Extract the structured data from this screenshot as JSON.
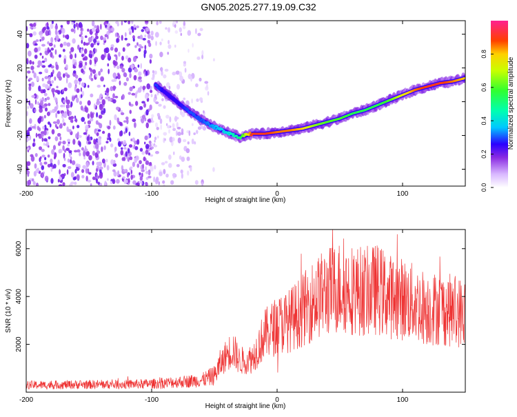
{
  "title": "GN05.2025.277.19.09.C32",
  "chart_data": [
    {
      "type": "heatmap",
      "title": "GN05.2025.277.19.09.C32",
      "xlabel": "Height of straight line (km)",
      "ylabel": "Frequency (Hz)",
      "xlim": [
        -200,
        150
      ],
      "ylim": [
        -50,
        48
      ],
      "x_ticks": [
        -200,
        -100,
        0,
        100
      ],
      "y_ticks": [
        -40,
        -20,
        0,
        20,
        40
      ],
      "colorbar": {
        "label": "Normalized spectral amplitude",
        "range": [
          0,
          1
        ],
        "ticks": [
          0.0,
          0.2,
          0.4,
          0.6,
          0.8
        ],
        "tick_labels": [
          "0.0",
          "0.2",
          "0.4",
          "0.6",
          "0.8"
        ]
      },
      "ridge": {
        "x": [
          -97,
          -90,
          -80,
          -70,
          -60,
          -50,
          -40,
          -30,
          -20,
          -10,
          0,
          10,
          20,
          30,
          40,
          50,
          60,
          70,
          80,
          90,
          100,
          110,
          120,
          130,
          140,
          150
        ],
        "freq": [
          10,
          6,
          0,
          -6,
          -11,
          -15,
          -18,
          -21,
          -19,
          -19,
          -18,
          -17,
          -16,
          -14,
          -12,
          -10,
          -7,
          -5,
          -2,
          1,
          4,
          7,
          9,
          11,
          12,
          14
        ],
        "amplitude": [
          0.3,
          0.25,
          0.25,
          0.3,
          0.3,
          0.35,
          0.4,
          0.5,
          0.9,
          0.9,
          0.85,
          0.85,
          0.8,
          0.65,
          0.6,
          0.6,
          0.55,
          0.55,
          0.55,
          0.6,
          0.75,
          0.85,
          0.9,
          0.9,
          0.85,
          0.8
        ]
      },
      "noise_region_x": [
        -200,
        -55
      ]
    },
    {
      "type": "line",
      "xlabel": "Height of straight line (km)",
      "ylabel": "SNR (10 * v/v)",
      "xlim": [
        -200,
        150
      ],
      "ylim": [
        0,
        6800
      ],
      "x_ticks": [
        -200,
        -100,
        0,
        100
      ],
      "y_ticks": [
        2000,
        4000,
        6000
      ],
      "series": [
        {
          "name": "SNR",
          "color": "#ee3333",
          "x": [
            -200,
            -180,
            -160,
            -140,
            -120,
            -100,
            -80,
            -60,
            -50,
            -40,
            -35,
            -30,
            -20,
            -10,
            0,
            10,
            20,
            30,
            40,
            50,
            60,
            70,
            80,
            90,
            100,
            110,
            120,
            130,
            140,
            150
          ],
          "y": [
            300,
            300,
            320,
            320,
            330,
            350,
            420,
            500,
            700,
            1600,
            1800,
            1300,
            1400,
            2400,
            2800,
            3000,
            3400,
            3900,
            4200,
            4400,
            4300,
            4200,
            4300,
            4000,
            3900,
            3700,
            3500,
            3500,
            3400,
            3300
          ]
        }
      ]
    }
  ]
}
